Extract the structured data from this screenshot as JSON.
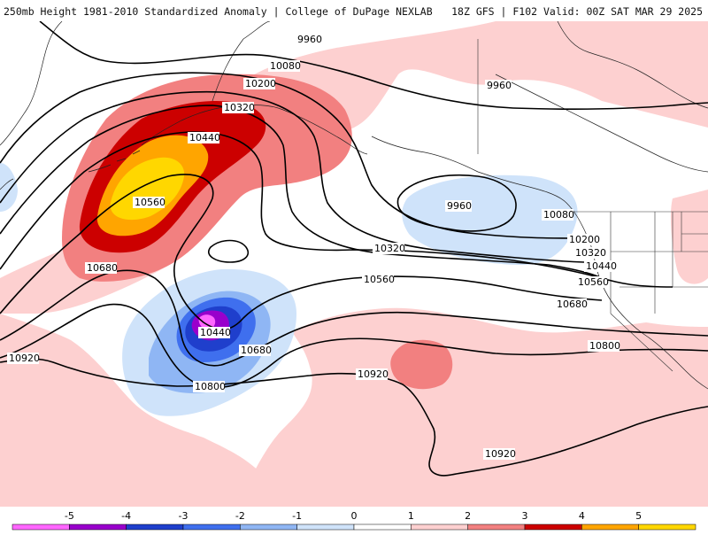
{
  "header": {
    "left": "250mb Height 1981-2010 Standardized Anomaly | College of DuPage NEXLAB",
    "right": "18Z GFS | F102 Valid: 00Z SAT MAR 29 2025"
  },
  "contour_labels": [
    "9960",
    "9960",
    "9960",
    "10080",
    "10080",
    "10200",
    "10200",
    "10320",
    "10320",
    "10320",
    "10440",
    "10440",
    "10440",
    "10560",
    "10560",
    "10560",
    "10680",
    "10680",
    "10680",
    "10680",
    "10800",
    "10800",
    "10920",
    "10920",
    "10920"
  ],
  "legend": {
    "ticks": [
      "-5",
      "-4",
      "-3",
      "-2",
      "-1",
      "0",
      "1",
      "2",
      "3",
      "4",
      "5"
    ],
    "colors": [
      "#ff66ff",
      "#9900cc",
      "#1f3fcc",
      "#3f6fee",
      "#8fb6f4",
      "#cfe3fa",
      "#ffffff",
      "#fdd0d0",
      "#f28080",
      "#cc0000",
      "#ffa500",
      "#ffd700"
    ]
  }
}
